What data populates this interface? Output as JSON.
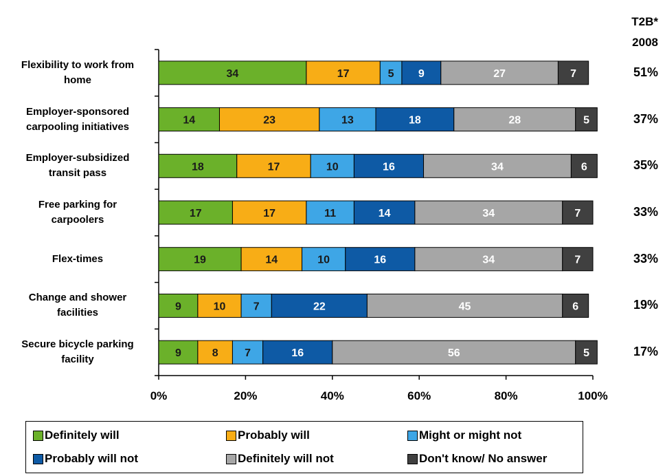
{
  "chart_data": {
    "type": "bar",
    "orientation": "horizontal",
    "stacked": true,
    "categories": [
      "Flexibility to work from home",
      "Employer-sponsored carpooling initiatives",
      "Employer-subsidized transit pass",
      "Free parking for carpoolers",
      "Flex-times",
      "Change and shower facilities",
      "Secure bicycle parking facility"
    ],
    "series": [
      {
        "name": "Definitely will",
        "color": "#6bb12a",
        "label_color": "#1a1a1a",
        "values": [
          34,
          14,
          18,
          17,
          19,
          9,
          9
        ]
      },
      {
        "name": "Probably will",
        "color": "#f8ad16",
        "label_color": "#1a1a1a",
        "values": [
          17,
          23,
          17,
          17,
          14,
          10,
          8
        ]
      },
      {
        "name": "Might or might not",
        "color": "#3ea6e6",
        "label_color": "#1a1a1a",
        "values": [
          5,
          13,
          10,
          11,
          10,
          7,
          7
        ]
      },
      {
        "name": "Probably will not",
        "color": "#0e5aa5",
        "label_color": "#ffffff",
        "values": [
          9,
          18,
          16,
          14,
          16,
          22,
          16
        ]
      },
      {
        "name": "Definitely will not",
        "color": "#a6a6a6",
        "label_color": "#ffffff",
        "values": [
          27,
          28,
          34,
          34,
          34,
          45,
          56
        ]
      },
      {
        "name": "Don't know/ No answer",
        "color": "#404040",
        "label_color": "#ffffff",
        "values": [
          7,
          5,
          6,
          7,
          7,
          6,
          5
        ]
      }
    ],
    "xlim": [
      0,
      100
    ],
    "x_ticks": [
      "0%",
      "20%",
      "40%",
      "60%",
      "80%",
      "100%"
    ],
    "legend_position": "bottom",
    "t2b": {
      "header": "T2B*",
      "year": "2008",
      "values": [
        "51%",
        "37%",
        "35%",
        "33%",
        "33%",
        "19%",
        "17%"
      ]
    }
  },
  "labels": {
    "cat_lines": [
      [
        "Flexibility to work from",
        "home"
      ],
      [
        "Employer-sponsored",
        "carpooling initiatives"
      ],
      [
        "Employer-subsidized",
        "transit pass"
      ],
      [
        "Free parking for",
        "carpoolers"
      ],
      [
        "Flex-times"
      ],
      [
        "Change and shower",
        "facilities"
      ],
      [
        "Secure bicycle parking",
        "facility"
      ]
    ]
  }
}
